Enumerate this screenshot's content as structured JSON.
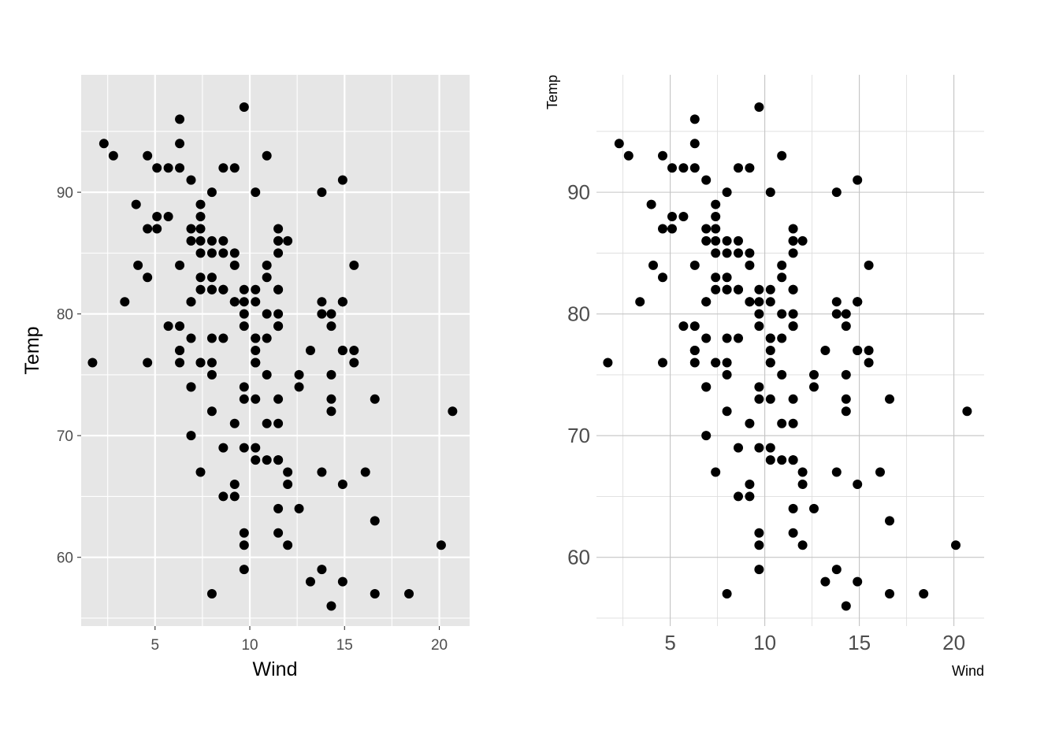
{
  "chart_data": [
    {
      "type": "scatter",
      "theme": "gray",
      "xlabel": "Wind",
      "ylabel": "Temp",
      "xlim": [
        1.1,
        21.6
      ],
      "ylim": [
        54.35,
        99.65
      ],
      "x_ticks": [
        5,
        10,
        15,
        20
      ],
      "y_ticks": [
        60,
        70,
        80,
        90
      ],
      "x_tick_labels": [
        "5",
        "10",
        "15",
        "20"
      ],
      "y_tick_labels": [
        "60",
        "70",
        "80",
        "90"
      ],
      "grid": true,
      "legend": "none",
      "point_color": "#000000",
      "panel_background": "#e6e6e6",
      "x": [
        7.4,
        8.0,
        12.6,
        11.5,
        14.3,
        14.9,
        8.6,
        13.8,
        20.1,
        8.6,
        6.9,
        9.7,
        9.2,
        10.9,
        13.2,
        11.5,
        12.0,
        18.4,
        11.5,
        9.7,
        9.7,
        16.6,
        9.7,
        12.0,
        16.6,
        14.9,
        8.0,
        12.0,
        14.9,
        5.7,
        7.4,
        8.6,
        9.7,
        16.1,
        9.2,
        8.6,
        14.3,
        9.7,
        6.9,
        13.8,
        11.5,
        10.9,
        9.2,
        8.0,
        13.8,
        11.5,
        14.9,
        20.7,
        9.2,
        11.5,
        10.3,
        6.3,
        1.7,
        4.6,
        6.3,
        8.0,
        8.0,
        10.3,
        11.5,
        14.9,
        8.0,
        4.1,
        9.2,
        9.2,
        10.9,
        4.6,
        10.9,
        5.1,
        6.3,
        5.7,
        7.4,
        8.6,
        14.3,
        14.9,
        14.9,
        14.3,
        6.9,
        10.3,
        6.3,
        5.1,
        11.5,
        6.9,
        9.7,
        11.5,
        8.6,
        8.0,
        8.6,
        12.0,
        7.4,
        7.4,
        7.4,
        9.2,
        6.9,
        13.8,
        7.4,
        6.9,
        7.4,
        4.6,
        4.0,
        10.3,
        8.0,
        8.6,
        11.5,
        11.5,
        11.5,
        9.7,
        11.5,
        10.3,
        6.3,
        7.4,
        10.9,
        10.3,
        15.5,
        14.3,
        12.6,
        9.7,
        3.4,
        8.0,
        5.7,
        9.7,
        2.3,
        6.3,
        6.3,
        6.9,
        5.1,
        2.8,
        4.6,
        7.4,
        15.5,
        10.9,
        10.3,
        10.9,
        9.7,
        14.9,
        15.5,
        6.3,
        10.9,
        11.5,
        6.9,
        13.8,
        10.3,
        10.3,
        8.0,
        12.6,
        9.2,
        10.3,
        10.3,
        16.6,
        6.9,
        13.2,
        14.3,
        8.0,
        11.5
      ],
      "y": [
        67,
        72,
        74,
        62,
        56,
        66,
        65,
        59,
        61,
        69,
        74,
        69,
        66,
        68,
        58,
        64,
        66,
        57,
        68,
        62,
        59,
        73,
        61,
        61,
        57,
        58,
        57,
        67,
        81,
        79,
        76,
        78,
        74,
        67,
        84,
        85,
        79,
        82,
        87,
        90,
        87,
        93,
        92,
        82,
        80,
        79,
        77,
        72,
        65,
        73,
        76,
        77,
        76,
        76,
        76,
        75,
        78,
        73,
        80,
        77,
        83,
        84,
        85,
        81,
        84,
        83,
        83,
        88,
        92,
        92,
        89,
        82,
        73,
        81,
        91,
        80,
        81,
        82,
        84,
        87,
        85,
        74,
        81,
        82,
        86,
        85,
        82,
        86,
        88,
        86,
        83,
        81,
        81,
        81,
        82,
        86,
        85,
        87,
        89,
        90,
        90,
        92,
        86,
        86,
        82,
        80,
        79,
        77,
        79,
        76,
        78,
        78,
        77,
        72,
        75,
        79,
        81,
        86,
        88,
        97,
        94,
        96,
        94,
        91,
        92,
        93,
        93,
        87,
        84,
        80,
        78,
        75,
        73,
        81,
        76,
        77,
        71,
        71,
        78,
        67,
        76,
        68,
        82,
        64,
        71,
        81,
        69,
        63,
        70,
        77,
        75,
        76,
        68
      ]
    },
    {
      "type": "scatter",
      "theme": "minimal",
      "xlabel": "Wind",
      "ylabel": "Temp",
      "xlim": [
        1.1,
        21.6
      ],
      "ylim": [
        54.35,
        99.65
      ],
      "x_ticks": [
        5,
        10,
        15,
        20
      ],
      "y_ticks": [
        60,
        70,
        80,
        90
      ],
      "x_tick_labels": [
        "5",
        "10",
        "15",
        "20"
      ],
      "y_tick_labels": [
        "60",
        "70",
        "80",
        "90"
      ],
      "grid": true,
      "legend": "none",
      "point_color": "#000000"
    }
  ]
}
